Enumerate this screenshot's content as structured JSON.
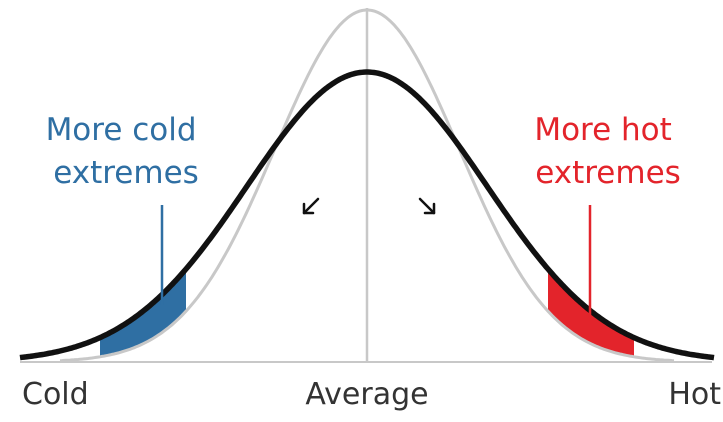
{
  "labels": {
    "cold_extremes_line1": "More cold",
    "cold_extremes_line2": "extremes",
    "hot_extremes_line1": "More hot",
    "hot_extremes_line2": "extremes"
  },
  "axis": {
    "left": "Cold",
    "center": "Average",
    "right": "Hot"
  },
  "colors": {
    "cold": "#2f6fa3",
    "hot": "#e3242b",
    "current_curve": "#111111",
    "previous_curve": "#c8c8c8",
    "average_line": "#c8c8c8"
  },
  "icons": {
    "left_arrow": "arrow-down-left-icon",
    "right_arrow": "arrow-down-right-icon"
  }
}
